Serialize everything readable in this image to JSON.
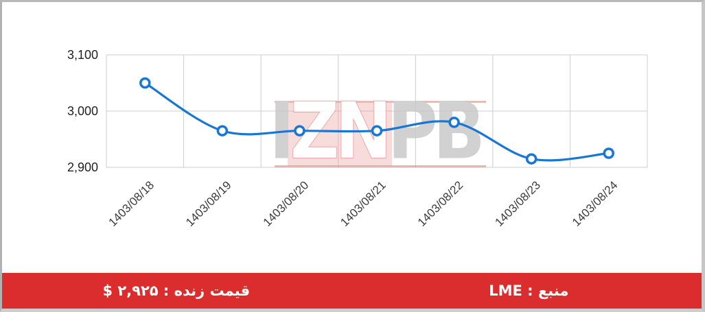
{
  "chart_data": {
    "type": "line",
    "title": "",
    "xlabel": "",
    "ylabel": "",
    "categories": [
      "1403/08/18",
      "1403/08/19",
      "1403/08/20",
      "1403/08/21",
      "1403/08/22",
      "1403/08/23",
      "1403/08/24"
    ],
    "series": [
      {
        "values": [
          3050,
          2965,
          2965,
          2965,
          2980,
          2915,
          2925
        ]
      }
    ],
    "ylim": [
      2900,
      3100
    ],
    "yticks": [
      2900,
      3000,
      3100
    ],
    "ytick_labels": [
      "2,900",
      "3,000",
      "3,100"
    ],
    "grid": true,
    "legend": "none",
    "label_rotation": -45,
    "line_color": "#1877d4",
    "marker_fill": "#ffffff",
    "marker_stroke": "#1877d4",
    "gridline_color": "#cccccc",
    "ytick_color": "#1f1f1f",
    "xtick_color": "#3c3c3c"
  },
  "watermark": {
    "text": "IZNPB",
    "letters": [
      {
        "char": "I",
        "style": "gray"
      },
      {
        "char": "Z",
        "style": "white"
      },
      {
        "char": "N",
        "style": "white"
      },
      {
        "char": "P",
        "style": "gray"
      },
      {
        "char": "B",
        "style": "gray"
      }
    ]
  },
  "footer": {
    "background": "#db2d2d",
    "text_color": "#ffffff",
    "live_price_label": "قیمت زنده : ۲,۹۲۵ $",
    "source_label": "منبع : LME"
  }
}
